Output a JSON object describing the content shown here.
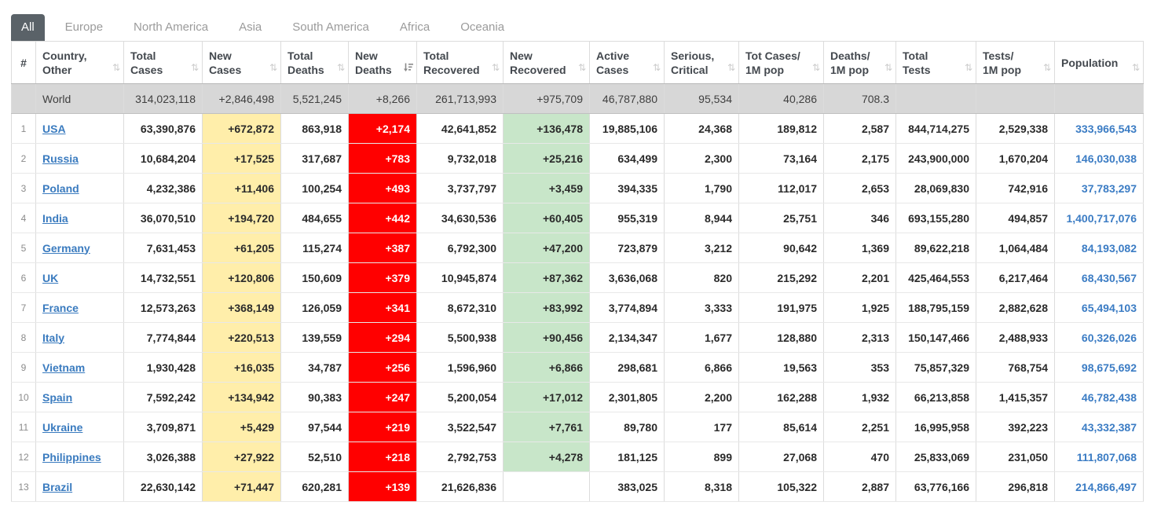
{
  "colors": {
    "tab_active_bg": "#5a6268",
    "new_cases_bg": "#ffeeaa",
    "new_deaths_bg": "#ff0000",
    "new_recovered_bg": "#c8e6c9",
    "world_row_bg": "#d7d7d7",
    "link_blue": "#3a7bbf",
    "population_blue": "#3b7cc4"
  },
  "tabs": [
    {
      "label": "All",
      "active": true
    },
    {
      "label": "Europe",
      "active": false
    },
    {
      "label": "North America",
      "active": false
    },
    {
      "label": "Asia",
      "active": false
    },
    {
      "label": "South America",
      "active": false
    },
    {
      "label": "Africa",
      "active": false
    },
    {
      "label": "Oceania",
      "active": false
    }
  ],
  "table": {
    "columns": [
      {
        "line1": "#",
        "line2": "",
        "sortable": false,
        "sorted": ""
      },
      {
        "line1": "Country,",
        "line2": "Other",
        "sortable": true,
        "sorted": ""
      },
      {
        "line1": "Total",
        "line2": "Cases",
        "sortable": true,
        "sorted": ""
      },
      {
        "line1": "New",
        "line2": "Cases",
        "sortable": true,
        "sorted": ""
      },
      {
        "line1": "Total",
        "line2": "Deaths",
        "sortable": true,
        "sorted": ""
      },
      {
        "line1": "New",
        "line2": "Deaths",
        "sortable": true,
        "sorted": "desc"
      },
      {
        "line1": "Total",
        "line2": "Recovered",
        "sortable": true,
        "sorted": ""
      },
      {
        "line1": "New",
        "line2": "Recovered",
        "sortable": true,
        "sorted": ""
      },
      {
        "line1": "Active",
        "line2": "Cases",
        "sortable": true,
        "sorted": ""
      },
      {
        "line1": "Serious,",
        "line2": "Critical",
        "sortable": true,
        "sorted": ""
      },
      {
        "line1": "Tot Cases/",
        "line2": "1M pop",
        "sortable": true,
        "sorted": ""
      },
      {
        "line1": "Deaths/",
        "line2": "1M pop",
        "sortable": true,
        "sorted": ""
      },
      {
        "line1": "Total",
        "line2": "Tests",
        "sortable": true,
        "sorted": ""
      },
      {
        "line1": "Tests/",
        "line2": "1M pop",
        "sortable": true,
        "sorted": ""
      },
      {
        "line1": "Population",
        "line2": "",
        "sortable": true,
        "sorted": ""
      }
    ],
    "world": {
      "rank": "",
      "country": "World",
      "total_cases": "314,023,118",
      "new_cases": "+2,846,498",
      "total_deaths": "5,521,245",
      "new_deaths": "+8,266",
      "total_recovered": "261,713,993",
      "new_recovered": "+975,709",
      "active_cases": "46,787,880",
      "serious_critical": "95,534",
      "cases_per_1m": "40,286",
      "deaths_per_1m": "708.3",
      "total_tests": "",
      "tests_per_1m": "",
      "population": ""
    },
    "rows": [
      {
        "rank": "1",
        "country": "USA",
        "total_cases": "63,390,876",
        "new_cases": "+672,872",
        "total_deaths": "863,918",
        "new_deaths": "+2,174",
        "total_recovered": "42,641,852",
        "new_recovered": "+136,478",
        "active_cases": "19,885,106",
        "serious_critical": "24,368",
        "cases_per_1m": "189,812",
        "deaths_per_1m": "2,587",
        "total_tests": "844,714,275",
        "tests_per_1m": "2,529,338",
        "population": "333,966,543"
      },
      {
        "rank": "2",
        "country": "Russia",
        "total_cases": "10,684,204",
        "new_cases": "+17,525",
        "total_deaths": "317,687",
        "new_deaths": "+783",
        "total_recovered": "9,732,018",
        "new_recovered": "+25,216",
        "active_cases": "634,499",
        "serious_critical": "2,300",
        "cases_per_1m": "73,164",
        "deaths_per_1m": "2,175",
        "total_tests": "243,900,000",
        "tests_per_1m": "1,670,204",
        "population": "146,030,038"
      },
      {
        "rank": "3",
        "country": "Poland",
        "total_cases": "4,232,386",
        "new_cases": "+11,406",
        "total_deaths": "100,254",
        "new_deaths": "+493",
        "total_recovered": "3,737,797",
        "new_recovered": "+3,459",
        "active_cases": "394,335",
        "serious_critical": "1,790",
        "cases_per_1m": "112,017",
        "deaths_per_1m": "2,653",
        "total_tests": "28,069,830",
        "tests_per_1m": "742,916",
        "population": "37,783,297"
      },
      {
        "rank": "4",
        "country": "India",
        "total_cases": "36,070,510",
        "new_cases": "+194,720",
        "total_deaths": "484,655",
        "new_deaths": "+442",
        "total_recovered": "34,630,536",
        "new_recovered": "+60,405",
        "active_cases": "955,319",
        "serious_critical": "8,944",
        "cases_per_1m": "25,751",
        "deaths_per_1m": "346",
        "total_tests": "693,155,280",
        "tests_per_1m": "494,857",
        "population": "1,400,717,076"
      },
      {
        "rank": "5",
        "country": "Germany",
        "total_cases": "7,631,453",
        "new_cases": "+61,205",
        "total_deaths": "115,274",
        "new_deaths": "+387",
        "total_recovered": "6,792,300",
        "new_recovered": "+47,200",
        "active_cases": "723,879",
        "serious_critical": "3,212",
        "cases_per_1m": "90,642",
        "deaths_per_1m": "1,369",
        "total_tests": "89,622,218",
        "tests_per_1m": "1,064,484",
        "population": "84,193,082"
      },
      {
        "rank": "6",
        "country": "UK",
        "total_cases": "14,732,551",
        "new_cases": "+120,806",
        "total_deaths": "150,609",
        "new_deaths": "+379",
        "total_recovered": "10,945,874",
        "new_recovered": "+87,362",
        "active_cases": "3,636,068",
        "serious_critical": "820",
        "cases_per_1m": "215,292",
        "deaths_per_1m": "2,201",
        "total_tests": "425,464,553",
        "tests_per_1m": "6,217,464",
        "population": "68,430,567"
      },
      {
        "rank": "7",
        "country": "France",
        "total_cases": "12,573,263",
        "new_cases": "+368,149",
        "total_deaths": "126,059",
        "new_deaths": "+341",
        "total_recovered": "8,672,310",
        "new_recovered": "+83,992",
        "active_cases": "3,774,894",
        "serious_critical": "3,333",
        "cases_per_1m": "191,975",
        "deaths_per_1m": "1,925",
        "total_tests": "188,795,159",
        "tests_per_1m": "2,882,628",
        "population": "65,494,103"
      },
      {
        "rank": "8",
        "country": "Italy",
        "total_cases": "7,774,844",
        "new_cases": "+220,513",
        "total_deaths": "139,559",
        "new_deaths": "+294",
        "total_recovered": "5,500,938",
        "new_recovered": "+90,456",
        "active_cases": "2,134,347",
        "serious_critical": "1,677",
        "cases_per_1m": "128,880",
        "deaths_per_1m": "2,313",
        "total_tests": "150,147,466",
        "tests_per_1m": "2,488,933",
        "population": "60,326,026"
      },
      {
        "rank": "9",
        "country": "Vietnam",
        "total_cases": "1,930,428",
        "new_cases": "+16,035",
        "total_deaths": "34,787",
        "new_deaths": "+256",
        "total_recovered": "1,596,960",
        "new_recovered": "+6,866",
        "active_cases": "298,681",
        "serious_critical": "6,866",
        "cases_per_1m": "19,563",
        "deaths_per_1m": "353",
        "total_tests": "75,857,329",
        "tests_per_1m": "768,754",
        "population": "98,675,692"
      },
      {
        "rank": "10",
        "country": "Spain",
        "total_cases": "7,592,242",
        "new_cases": "+134,942",
        "total_deaths": "90,383",
        "new_deaths": "+247",
        "total_recovered": "5,200,054",
        "new_recovered": "+17,012",
        "active_cases": "2,301,805",
        "serious_critical": "2,200",
        "cases_per_1m": "162,288",
        "deaths_per_1m": "1,932",
        "total_tests": "66,213,858",
        "tests_per_1m": "1,415,357",
        "population": "46,782,438"
      },
      {
        "rank": "11",
        "country": "Ukraine",
        "total_cases": "3,709,871",
        "new_cases": "+5,429",
        "total_deaths": "97,544",
        "new_deaths": "+219",
        "total_recovered": "3,522,547",
        "new_recovered": "+7,761",
        "active_cases": "89,780",
        "serious_critical": "177",
        "cases_per_1m": "85,614",
        "deaths_per_1m": "2,251",
        "total_tests": "16,995,958",
        "tests_per_1m": "392,223",
        "population": "43,332,387"
      },
      {
        "rank": "12",
        "country": "Philippines",
        "total_cases": "3,026,388",
        "new_cases": "+27,922",
        "total_deaths": "52,510",
        "new_deaths": "+218",
        "total_recovered": "2,792,753",
        "new_recovered": "+4,278",
        "active_cases": "181,125",
        "serious_critical": "899",
        "cases_per_1m": "27,068",
        "deaths_per_1m": "470",
        "total_tests": "25,833,069",
        "tests_per_1m": "231,050",
        "population": "111,807,068"
      },
      {
        "rank": "13",
        "country": "Brazil",
        "total_cases": "22,630,142",
        "new_cases": "+71,447",
        "total_deaths": "620,281",
        "new_deaths": "+139",
        "total_recovered": "21,626,836",
        "new_recovered": "",
        "active_cases": "383,025",
        "serious_critical": "8,318",
        "cases_per_1m": "105,322",
        "deaths_per_1m": "2,887",
        "total_tests": "63,776,166",
        "tests_per_1m": "296,818",
        "population": "214,866,497"
      }
    ]
  },
  "icons": {
    "sort_both": "⇅"
  }
}
